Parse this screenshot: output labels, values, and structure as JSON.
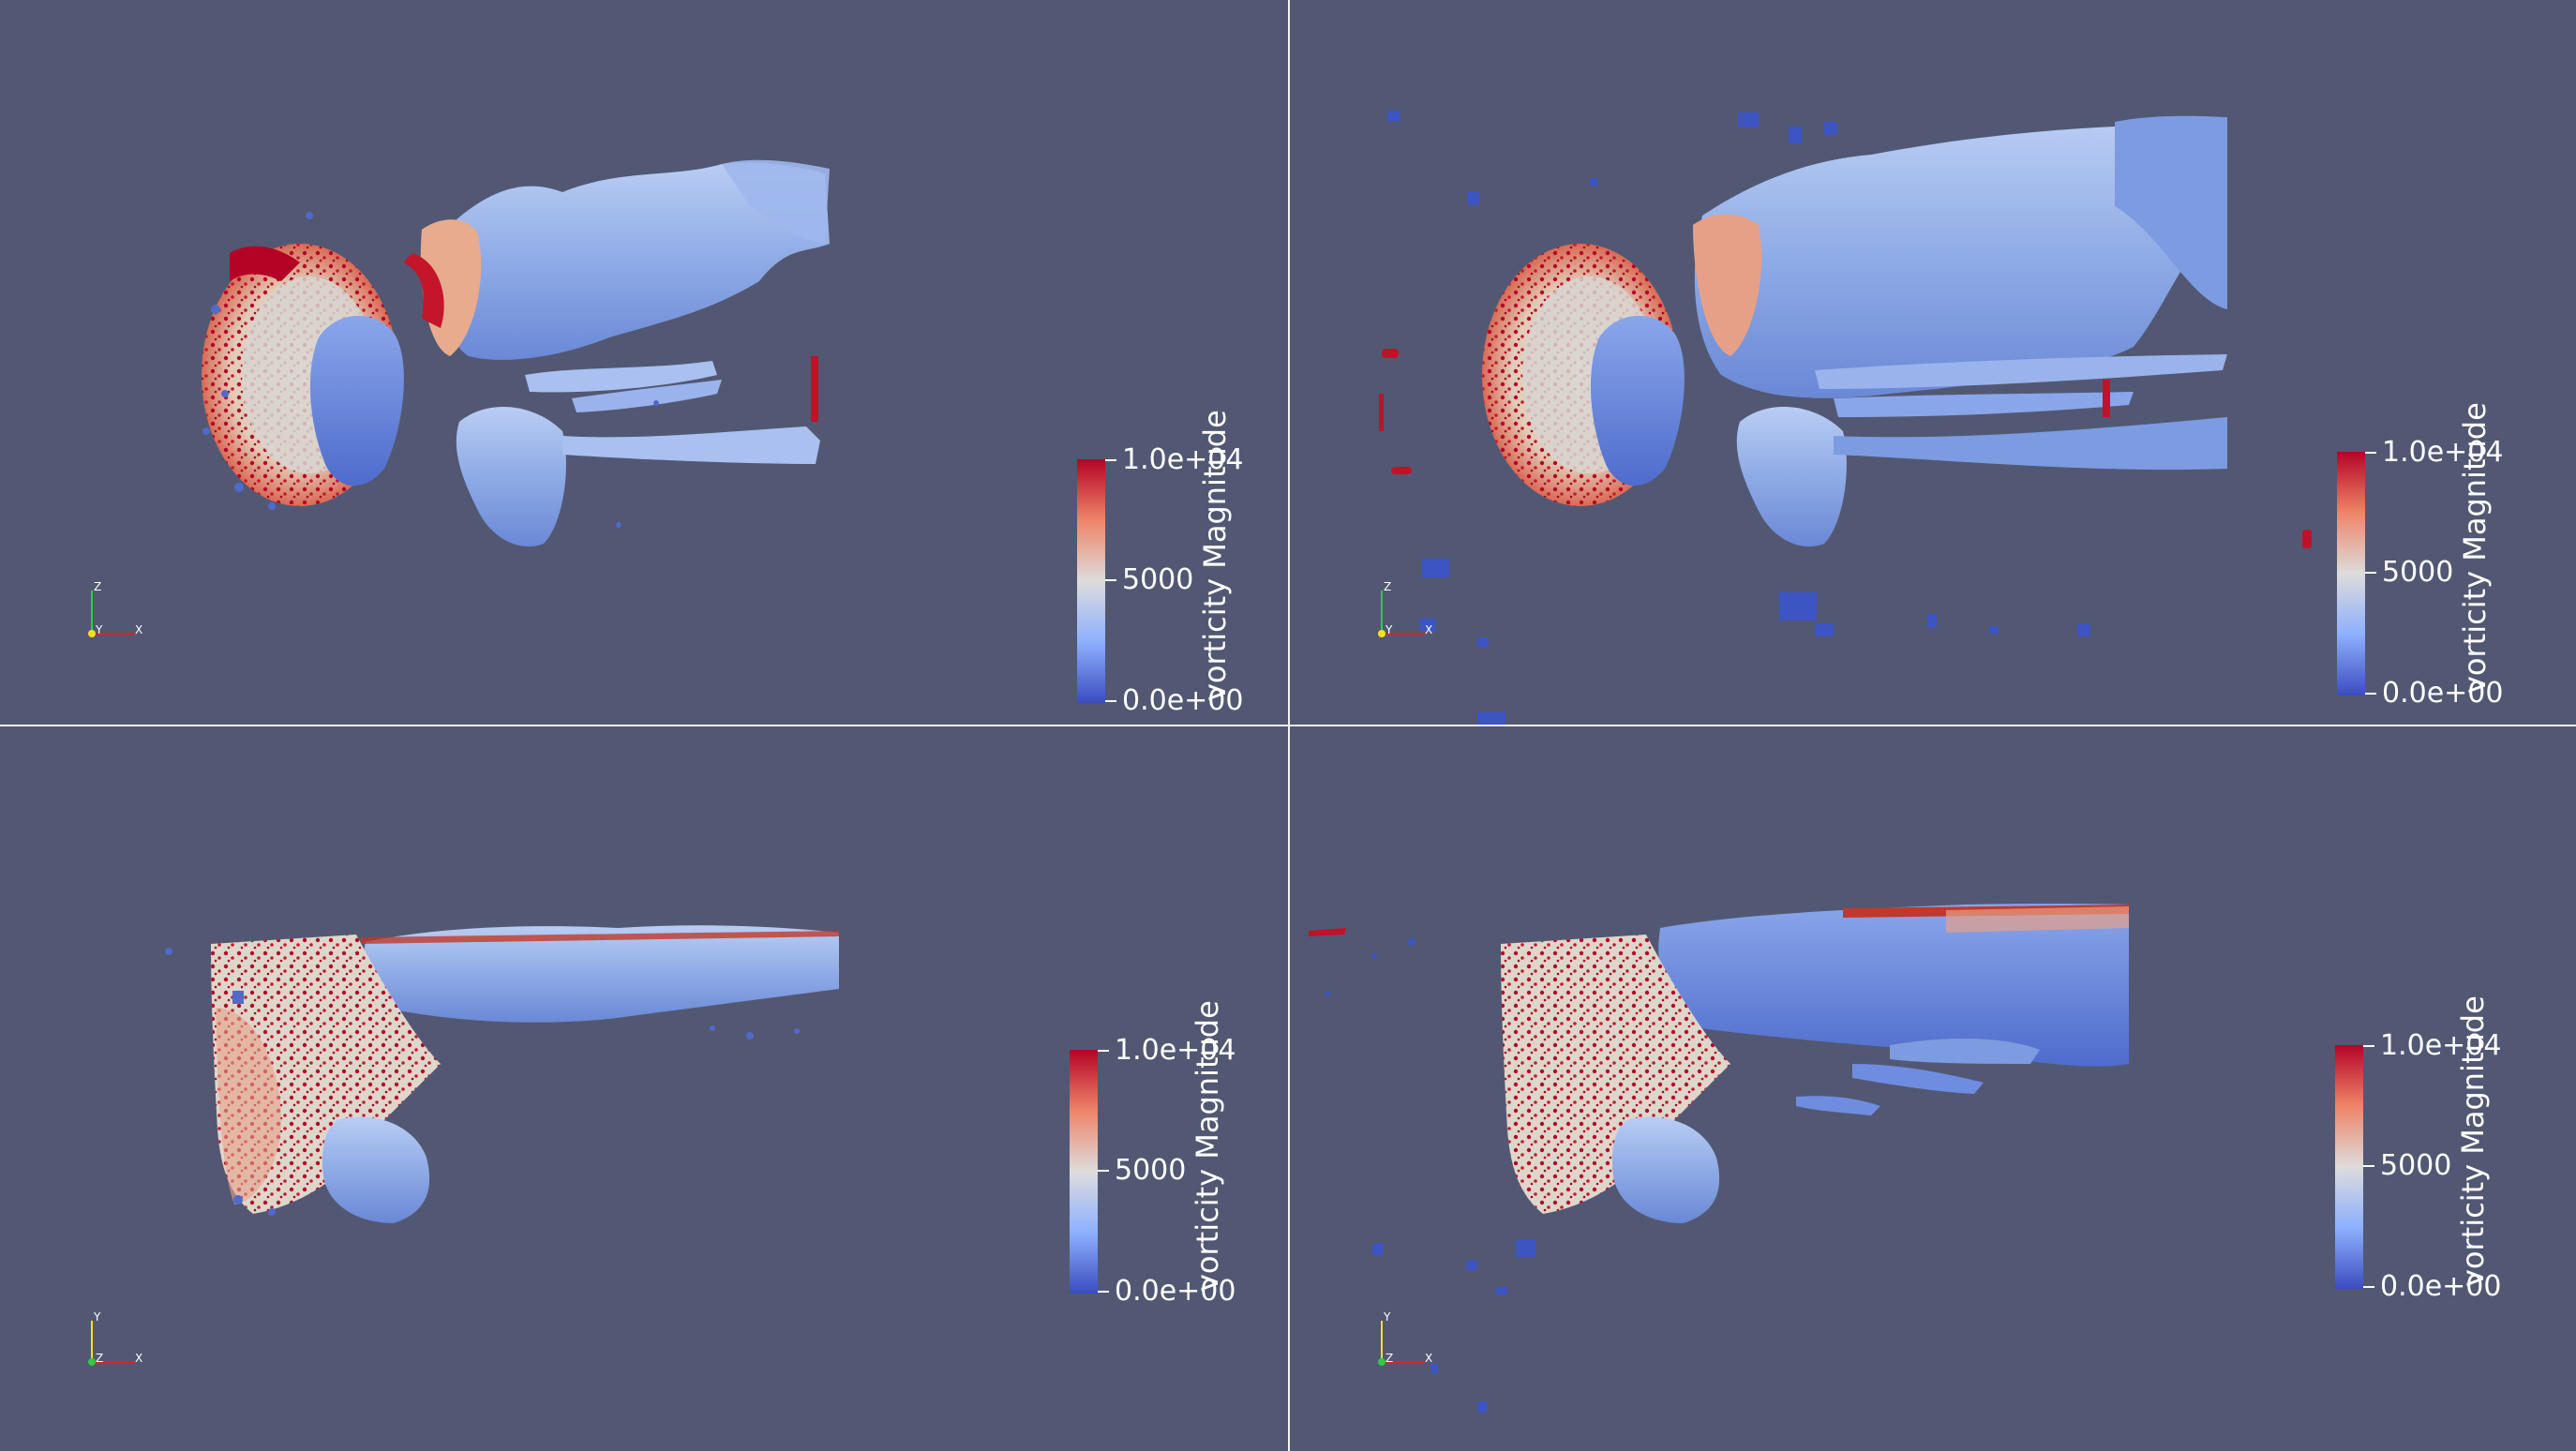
{
  "colors": {
    "background": "#525873",
    "divider": "#f2f2f2",
    "colormap_high": "#b40426",
    "colormap_mid": "#dddcdc",
    "colormap_low": "#3b4cc0"
  },
  "views": [
    {
      "id": "top-left",
      "colorbar": {
        "title": "vorticity Magnitude",
        "max_label": "1.0e+04",
        "mid_label": "5000",
        "min_label": "0.0e+00"
      },
      "axes": {
        "vertical": "Z",
        "depth": "Y",
        "horizontal": "X"
      }
    },
    {
      "id": "top-right",
      "colorbar": {
        "title": "vorticity Magnitude",
        "max_label": "1.0e+04",
        "mid_label": "5000",
        "min_label": "0.0e+00"
      },
      "axes": {
        "vertical": "Z",
        "depth": "Y",
        "horizontal": "X"
      }
    },
    {
      "id": "bottom-left",
      "colorbar": {
        "title": "vorticity Magnitude",
        "max_label": "1.0e+04",
        "mid_label": "5000",
        "min_label": "0.0e+00"
      },
      "axes": {
        "vertical": "Y",
        "depth": "Z",
        "horizontal": "X"
      }
    },
    {
      "id": "bottom-right",
      "colorbar": {
        "title": "vorticity Magnitude",
        "max_label": "1.0e+04",
        "mid_label": "5000",
        "min_label": "0.0e+00"
      },
      "axes": {
        "vertical": "Y",
        "depth": "Z",
        "horizontal": "X"
      }
    }
  ]
}
